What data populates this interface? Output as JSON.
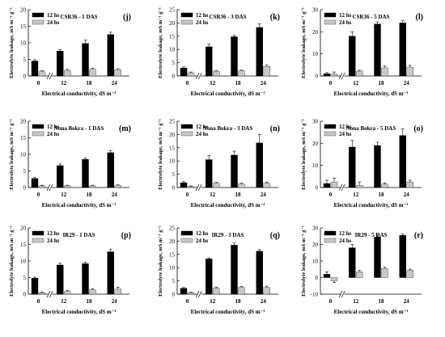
{
  "chart_data": [
    {
      "type": "bar",
      "panel": "(j)",
      "title": "CSR36 - 1 DAS",
      "xlabel": "Electrical conductivity, dS m⁻¹",
      "ylabel": "Electrolyte leakage, mS m⁻¹ g⁻¹",
      "categories": [
        "0",
        "12",
        "18",
        "24"
      ],
      "ylim": [
        0,
        20
      ],
      "yticks": [
        0,
        5,
        10,
        15,
        20
      ],
      "legend": "top-left",
      "series": [
        {
          "name": "12 hs",
          "values": [
            4.5,
            7.5,
            9.8,
            12.5
          ],
          "errors": [
            0.4,
            0.4,
            1.0,
            0.7
          ]
        },
        {
          "name": "24 hs",
          "values": [
            1.3,
            1.7,
            2.0,
            1.9
          ],
          "errors": [
            0.3,
            0.3,
            0.3,
            0.3
          ]
        }
      ]
    },
    {
      "type": "bar",
      "panel": "(k)",
      "title": "CSR36 - 3 DAS",
      "xlabel": "Electrical conductivity, dS m⁻¹",
      "ylabel": "Electrolyte leakage, mS m⁻¹ g⁻¹",
      "categories": [
        "0",
        "12",
        "18",
        "24"
      ],
      "ylim": [
        0,
        25
      ],
      "yticks": [
        0,
        5,
        10,
        15,
        20,
        25
      ],
      "legend": "top-left",
      "series": [
        {
          "name": "12 hs",
          "values": [
            3.0,
            11.0,
            14.8,
            18.3
          ],
          "errors": [
            0.4,
            1.0,
            0.5,
            1.3
          ]
        },
        {
          "name": "24 hs",
          "values": [
            1.2,
            1.8,
            1.9,
            3.6
          ],
          "errors": [
            0.3,
            0.3,
            0.3,
            0.5
          ]
        }
      ]
    },
    {
      "type": "bar",
      "panel": "(l)",
      "title": "CSR36 - 5 DAS",
      "xlabel": "Electrical conductivity, dS m⁻¹",
      "ylabel": "Electrolyte leakage, mS m⁻¹ g⁻¹",
      "categories": [
        "0",
        "12",
        "18",
        "24"
      ],
      "ylim": [
        0,
        30
      ],
      "yticks": [
        0,
        10,
        20,
        30
      ],
      "legend": "top-left",
      "series": [
        {
          "name": "12 hs",
          "values": [
            1.0,
            18.0,
            23.5,
            24.0
          ],
          "errors": [
            0.5,
            2.0,
            1.0,
            1.0
          ]
        },
        {
          "name": "24 hs",
          "values": [
            0.8,
            2.2,
            3.7,
            4.0
          ],
          "errors": [
            1.0,
            0.4,
            0.8,
            0.8
          ]
        }
      ]
    },
    {
      "type": "bar",
      "panel": "(m)",
      "title": "Nona Bokra - 1 DAS",
      "xlabel": "Electrical conductivity, dS m⁻¹",
      "ylabel": "Electrolyte leakage, mS m⁻¹ g⁻¹",
      "categories": [
        "0",
        "12",
        "18",
        "24"
      ],
      "ylim": [
        0,
        20
      ],
      "yticks": [
        0,
        5,
        10,
        15,
        20
      ],
      "legend": "top-left",
      "series": [
        {
          "name": "12 hs",
          "values": [
            2.7,
            6.6,
            8.5,
            10.5
          ],
          "errors": [
            0.3,
            0.5,
            0.4,
            0.7
          ]
        },
        {
          "name": "24 hs",
          "values": [
            0.5,
            0.5,
            0.5,
            0.6
          ],
          "errors": [
            0.2,
            0.2,
            0.2,
            0.2
          ]
        }
      ]
    },
    {
      "type": "bar",
      "panel": "(n)",
      "title": "Nona Bokra - 3 DAS",
      "xlabel": "Electrical conductivity, dS m⁻¹",
      "ylabel": "Electrolyte leakage, mS m⁻¹ g⁻¹",
      "categories": [
        "0",
        "12",
        "18",
        "24"
      ],
      "ylim": [
        0,
        25
      ],
      "yticks": [
        0,
        5,
        10,
        15,
        20,
        25
      ],
      "legend": "top-left",
      "series": [
        {
          "name": "12 hs",
          "values": [
            1.8,
            10.5,
            12.2,
            16.8
          ],
          "errors": [
            0.4,
            1.5,
            1.5,
            3.2
          ]
        },
        {
          "name": "24 hs",
          "values": [
            0.4,
            1.6,
            1.3,
            1.6
          ],
          "errors": [
            0.2,
            0.3,
            0.3,
            0.4
          ]
        }
      ]
    },
    {
      "type": "bar",
      "panel": "(o)",
      "title": "Nona Bokra - 5 DAS",
      "xlabel": "Electrical conductivity, dS m⁻¹",
      "ylabel": "Electrolyte leakage, mS m⁻¹ g⁻¹",
      "categories": [
        "0",
        "12",
        "18",
        "24"
      ],
      "ylim": [
        0,
        30
      ],
      "yticks": [
        0,
        10,
        20,
        30
      ],
      "legend": "top-left",
      "series": [
        {
          "name": "12 hs",
          "values": [
            1.8,
            18.3,
            19.0,
            23.5
          ],
          "errors": [
            1.5,
            3.0,
            1.5,
            3.0
          ]
        },
        {
          "name": "24 hs",
          "values": [
            2.5,
            1.0,
            1.5,
            2.5
          ],
          "errors": [
            1.8,
            1.5,
            0.5,
            0.8
          ]
        }
      ]
    },
    {
      "type": "bar",
      "panel": "(p)",
      "title": "IR29 - 1 DAS",
      "xlabel": "Electrical conductivity, dS m⁻¹",
      "ylabel": "Electrolyte leakage, mS m⁻¹ g⁻¹",
      "categories": [
        "0",
        "12",
        "18",
        "24"
      ],
      "ylim": [
        0,
        20
      ],
      "yticks": [
        0,
        5,
        10,
        15,
        20
      ],
      "legend": "top-left",
      "series": [
        {
          "name": "12 hs",
          "values": [
            4.8,
            8.8,
            9.2,
            12.8
          ],
          "errors": [
            0.3,
            0.6,
            0.5,
            0.8
          ]
        },
        {
          "name": "24 hs",
          "values": [
            0.4,
            0.8,
            1.3,
            1.6
          ],
          "errors": [
            0.2,
            0.3,
            0.3,
            0.5
          ]
        }
      ]
    },
    {
      "type": "bar",
      "panel": "(q)",
      "title": "IR29 - 3 DAS",
      "xlabel": "Electrical conductivity, dS m⁻¹",
      "ylabel": "Electrolyte leakage, mS m⁻¹ g⁻¹",
      "categories": [
        "0",
        "12",
        "18",
        "24"
      ],
      "ylim": [
        0,
        25
      ],
      "yticks": [
        0,
        5,
        10,
        15,
        20,
        25
      ],
      "legend": "top-left",
      "series": [
        {
          "name": "12 hs",
          "values": [
            2.2,
            13.3,
            18.5,
            16.2
          ],
          "errors": [
            0.3,
            0.4,
            0.8,
            0.6
          ]
        },
        {
          "name": "24 hs",
          "values": [
            0.5,
            2.3,
            2.5,
            2.5
          ],
          "errors": [
            0.2,
            0.4,
            0.4,
            0.5
          ]
        }
      ]
    },
    {
      "type": "bar",
      "panel": "(r)",
      "title": "IR29 - 5 DAS",
      "xlabel": "Electrical conductivity, dS m⁻¹",
      "ylabel": "Electrolyte leakage, mS m⁻¹ g⁻¹",
      "categories": [
        "0",
        "12",
        "18",
        "24"
      ],
      "ylim": [
        -10,
        30
      ],
      "yticks": [
        -10,
        0,
        10,
        20,
        30
      ],
      "legend": "top-left",
      "series": [
        {
          "name": "12 hs",
          "values": [
            2.0,
            18.0,
            24.5,
            25.5
          ],
          "errors": [
            1.5,
            2.0,
            1.5,
            1.0
          ]
        },
        {
          "name": "24 hs",
          "values": [
            -2.0,
            3.5,
            5.5,
            4.5
          ],
          "errors": [
            1.0,
            0.8,
            0.8,
            0.6
          ]
        }
      ]
    }
  ]
}
